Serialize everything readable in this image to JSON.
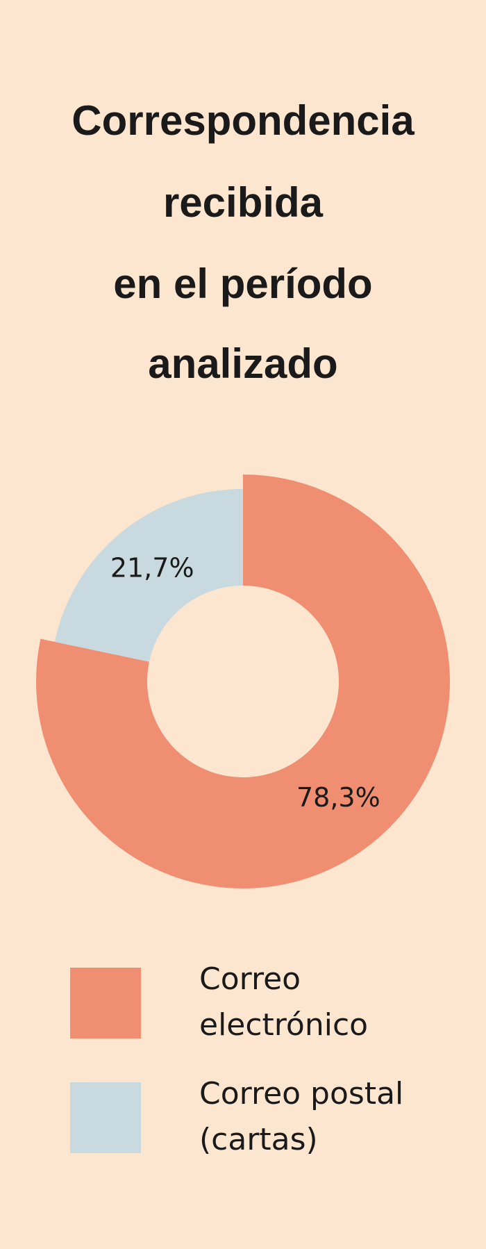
{
  "chart_data": {
    "type": "donut",
    "title": [
      "Correspondencia",
      "recibida",
      "en el período",
      "analizado"
    ],
    "categories": [
      "Correo electrónico",
      "Correo postal (cartas)"
    ],
    "values": [
      78.3,
      21.7
    ],
    "value_labels": [
      "78,3%",
      "21,7%"
    ],
    "colors": [
      "#f08e72",
      "#c8d9df"
    ],
    "legend": "bottom"
  }
}
